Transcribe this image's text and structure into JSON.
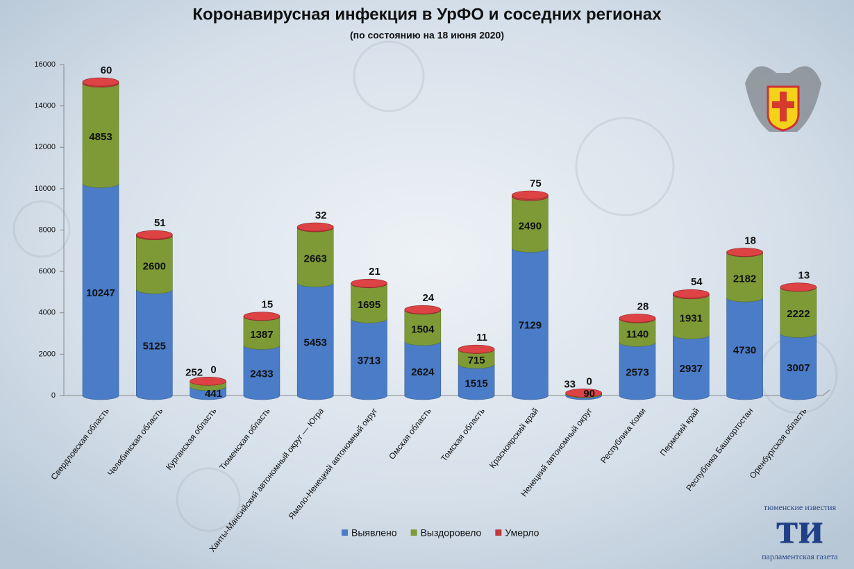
{
  "chart_data": {
    "type": "stacked-cylinder",
    "title": "Коронавирусная инфекция в УрФО и соседних регионах",
    "subtitle": "(по состоянию на 18 июня 2020)",
    "categories": [
      "Свердловская область",
      "Челябинская область",
      "Курганская область",
      "Тюменская область",
      "Ханты-Мансийский автономный округ — Югра",
      "Ямало-Ненецкий автономный округ",
      "Омская область",
      "Томская область",
      "Красноярский край",
      "Ненецкий автономный округ",
      "Республика Коми",
      "Пермский край",
      "Республика Башкортостан",
      "Оренбургская область"
    ],
    "series": [
      {
        "name": "Выявлено",
        "color": "#4a7cc7",
        "values": [
          10247,
          5125,
          441,
          2433,
          5453,
          3713,
          2624,
          1515,
          7129,
          90,
          2573,
          2937,
          4730,
          3007
        ]
      },
      {
        "name": "Выздоровело",
        "color": "#7d9a36",
        "values": [
          4853,
          2600,
          252,
          1387,
          2663,
          1695,
          1504,
          715,
          2490,
          33,
          1140,
          1931,
          2182,
          2222
        ]
      },
      {
        "name": "Умерло",
        "color": "#c0393b",
        "values": [
          60,
          51,
          0,
          15,
          32,
          21,
          24,
          11,
          75,
          0,
          28,
          54,
          18,
          13
        ]
      }
    ],
    "ylim": [
      0,
      16000
    ],
    "yticks": [
      0,
      2000,
      4000,
      6000,
      8000,
      10000,
      12000,
      14000,
      16000
    ],
    "grid": false,
    "legend": "bottom"
  },
  "logo": {
    "top": "тюменские известия",
    "mark": "ти",
    "bottom": "парламентская газета"
  }
}
